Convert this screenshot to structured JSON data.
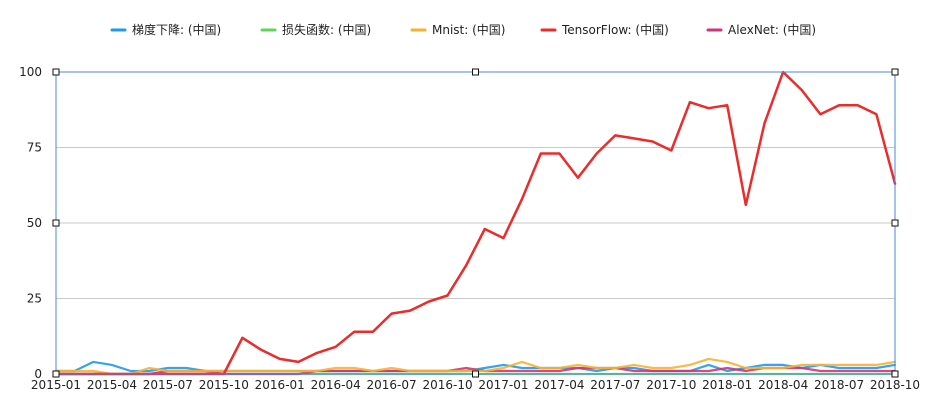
{
  "chart_data": {
    "type": "line",
    "title": "",
    "xlabel": "",
    "ylabel": "",
    "ylim": [
      0,
      100
    ],
    "yticks": [
      0,
      25,
      50,
      75,
      100
    ],
    "grid": true,
    "legend_position": "top",
    "x": [
      "2015-01",
      "2015-02",
      "2015-03",
      "2015-04",
      "2015-05",
      "2015-06",
      "2015-07",
      "2015-08",
      "2015-09",
      "2015-10",
      "2015-11",
      "2015-12",
      "2016-01",
      "2016-02",
      "2016-03",
      "2016-04",
      "2016-05",
      "2016-06",
      "2016-07",
      "2016-08",
      "2016-09",
      "2016-10",
      "2016-11",
      "2016-12",
      "2017-01",
      "2017-02",
      "2017-03",
      "2017-04",
      "2017-05",
      "2017-06",
      "2017-07",
      "2017-08",
      "2017-09",
      "2017-10",
      "2017-11",
      "2017-12",
      "2018-01",
      "2018-02",
      "2018-03",
      "2018-04",
      "2018-05",
      "2018-06",
      "2018-07",
      "2018-08",
      "2018-09",
      "2018-10"
    ],
    "xtick_labels": [
      "2015-01",
      "2015-04",
      "2015-07",
      "2015-10",
      "2016-01",
      "2016-04",
      "2016-07",
      "2016-10",
      "2017-01",
      "2017-04",
      "2017-07",
      "2017-10",
      "2018-01",
      "2018-04",
      "2018-07",
      "2018-10"
    ],
    "series": [
      {
        "name": "梯度下降: (中国)",
        "color": "#1e9be9",
        "values": [
          1,
          1,
          4,
          3,
          1,
          1,
          2,
          2,
          1,
          1,
          1,
          1,
          1,
          1,
          1,
          1,
          1,
          1,
          1,
          1,
          1,
          1,
          1,
          2,
          3,
          2,
          2,
          2,
          2,
          1,
          2,
          2,
          1,
          1,
          1,
          3,
          1,
          2,
          3,
          3,
          2,
          3,
          2,
          2,
          2,
          3
        ]
      },
      {
        "name": "损失函数: (中国)",
        "color": "#5ed65a",
        "values": [
          0,
          0,
          0,
          0,
          0,
          0,
          0,
          0,
          0,
          0,
          0,
          0,
          0,
          0,
          0,
          0,
          0,
          0,
          0,
          0,
          0,
          0,
          0,
          0,
          0,
          0,
          0,
          0,
          0,
          0,
          0,
          0,
          0,
          0,
          0,
          0,
          0,
          0,
          0,
          0,
          0,
          0,
          0,
          0,
          0,
          0
        ]
      },
      {
        "name": "Mnist: (中国)",
        "color": "#f7b22d",
        "values": [
          1,
          1,
          1,
          0,
          0,
          2,
          1,
          1,
          1,
          1,
          1,
          1,
          1,
          1,
          1,
          2,
          2,
          1,
          2,
          1,
          1,
          1,
          1,
          1,
          2,
          4,
          2,
          2,
          3,
          2,
          2,
          3,
          2,
          2,
          3,
          5,
          4,
          2,
          2,
          2,
          3,
          3,
          3,
          3,
          3,
          4
        ]
      },
      {
        "name": "TensorFlow: (中国)",
        "color": "#ec2b2b",
        "values": [
          0,
          0,
          0,
          0,
          0,
          0,
          0,
          0,
          0,
          0,
          12,
          8,
          5,
          4,
          7,
          9,
          14,
          14,
          20,
          21,
          24,
          26,
          36,
          48,
          45,
          58,
          73,
          73,
          65,
          73,
          79,
          78,
          77,
          74,
          90,
          88,
          89,
          56,
          83,
          100,
          94,
          86,
          89,
          89,
          86,
          63
        ]
      },
      {
        "name": "AlexNet: (中国)",
        "color": "#d2347a",
        "values": [
          0,
          0,
          0,
          0,
          0,
          0,
          1,
          1,
          1,
          0,
          0,
          0,
          0,
          0,
          1,
          1,
          1,
          1,
          1,
          1,
          1,
          1,
          2,
          1,
          1,
          1,
          1,
          1,
          2,
          2,
          2,
          1,
          1,
          1,
          1,
          1,
          2,
          1,
          2,
          2,
          2,
          1,
          1,
          1,
          1,
          1
        ]
      }
    ]
  }
}
